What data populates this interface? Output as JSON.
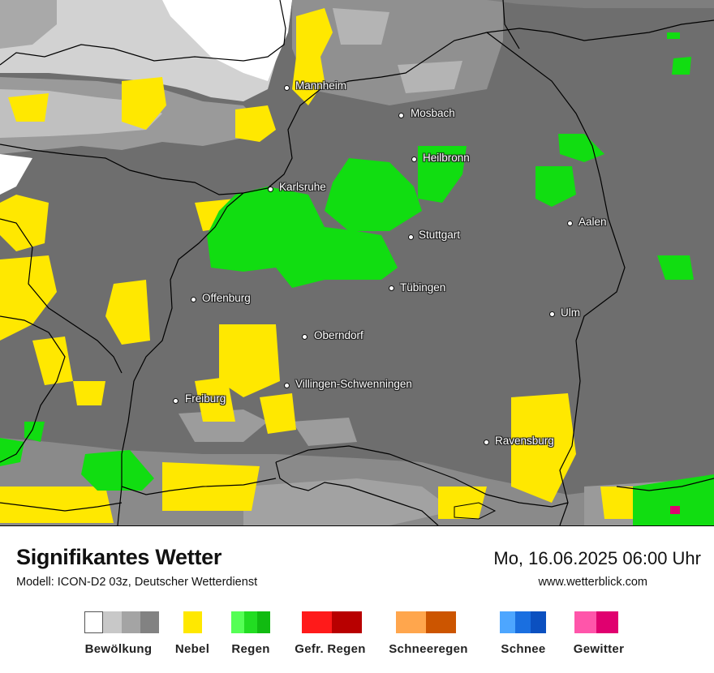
{
  "title": "Signifikantes Wetter",
  "model": "Modell: ICON-D2 03z, Deutscher Wetterdienst",
  "datetime": "Mo, 16.06.2025 06:00 Uhr",
  "website": "www.wetterblick.com",
  "cities": [
    {
      "name": "Mannheim"
    },
    {
      "name": "Mosbach"
    },
    {
      "name": "Heilbronn"
    },
    {
      "name": "Karlsruhe"
    },
    {
      "name": "Aalen"
    },
    {
      "name": "Stuttgart"
    },
    {
      "name": "Tübingen"
    },
    {
      "name": "Offenburg"
    },
    {
      "name": "Ulm"
    },
    {
      "name": "Oberndorf"
    },
    {
      "name": "Villingen-Schwenningen"
    },
    {
      "name": "Freiburg"
    },
    {
      "name": "Ravensburg"
    }
  ],
  "legend": [
    {
      "label": "Bewölkung",
      "colors": [
        "#ffffff",
        "#c8c8c8",
        "#a4a4a4",
        "#828282"
      ]
    },
    {
      "label": "Nebel",
      "colors": [
        "#ffe800"
      ]
    },
    {
      "label": "Regen",
      "colors": [
        "#55ff55",
        "#22dd22",
        "#11bb11"
      ]
    },
    {
      "label": "Gefr. Regen",
      "colors": [
        "#ff1a1a",
        "#b80000"
      ]
    },
    {
      "label": "Schneeregen",
      "colors": [
        "#ffa64d",
        "#cc5500"
      ]
    },
    {
      "label": "Schnee",
      "colors": [
        "#4da6ff",
        "#1a6fe0",
        "#0b50c0"
      ]
    },
    {
      "label": "Gewitter",
      "colors": [
        "#ff55aa",
        "#e0006f"
      ]
    }
  ],
  "colors": {
    "cloud_light": "#ffffff",
    "cloud_mid": "#c8c8c8",
    "cloud_dark": "#a4a4a4",
    "overcast": "#6f6f6f",
    "fog": "#ffe800",
    "rain": "#11dd11",
    "thunder": "#e0006f"
  }
}
